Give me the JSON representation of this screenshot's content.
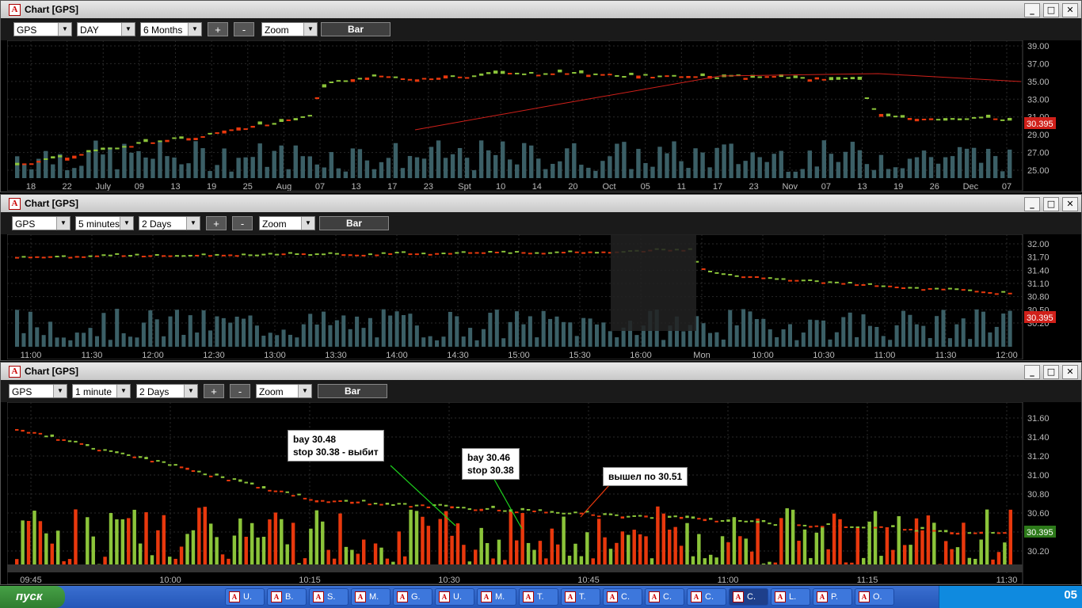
{
  "windows": [
    {
      "title": "Chart [GPS]",
      "symbol": "GPS",
      "interval": "DAY",
      "range": "6 Months",
      "plus": "+",
      "minus": "-",
      "zoom": "Zoom",
      "bar": "Bar",
      "price_labels": [
        "39.00",
        "37.00",
        "35.00",
        "33.00",
        "31.00",
        "29.00",
        "27.00",
        "25.00"
      ],
      "last_price": "30.395",
      "time_labels": [
        "18",
        "22",
        "July",
        "09",
        "13",
        "19",
        "25",
        "Aug",
        "07",
        "13",
        "17",
        "23",
        "Spt",
        "10",
        "14",
        "20",
        "Oct",
        "05",
        "11",
        "17",
        "23",
        "Nov",
        "07",
        "13",
        "19",
        "26",
        "Dec",
        "07"
      ]
    },
    {
      "title": "Chart [GPS]",
      "symbol": "GPS",
      "interval": "5 minutes",
      "range": "2 Days",
      "plus": "+",
      "minus": "-",
      "zoom": "Zoom",
      "bar": "Bar",
      "price_labels": [
        "32.00",
        "31.70",
        "31.40",
        "31.10",
        "30.80",
        "30.50",
        "30.20"
      ],
      "last_price": "30.395",
      "time_labels": [
        "11:00",
        "11:30",
        "12:00",
        "12:30",
        "13:00",
        "13:30",
        "14:00",
        "14:30",
        "15:00",
        "15:30",
        "16:00",
        "Mon",
        "10:00",
        "10:30",
        "11:00",
        "11:30",
        "12:00"
      ]
    },
    {
      "title": "Chart [GPS]",
      "symbol": "GPS",
      "interval": "1 minute",
      "range": "2 Days",
      "plus": "+",
      "minus": "-",
      "zoom": "Zoom",
      "bar": "Bar",
      "price_labels": [
        "31.60",
        "31.40",
        "31.20",
        "31.00",
        "30.80",
        "30.60",
        "30.40",
        "30.20"
      ],
      "last_price": "30.395",
      "time_labels": [
        "09:45",
        "10:00",
        "10:15",
        "10:30",
        "10:45",
        "11:00",
        "11:15",
        "11:30"
      ]
    }
  ],
  "annotations": [
    {
      "line1": "bay 30.48",
      "line2": "stop 30.38 - выбит"
    },
    {
      "line1": "bay 30.46",
      "line2": "stop 30.38"
    },
    {
      "line1": "вышел по 30.51",
      "line2": ""
    }
  ],
  "taskbar": {
    "start": "пуск",
    "tasks": [
      "U.",
      "B.",
      "S.",
      "M.",
      "G.",
      "U.",
      "M.",
      "T.",
      "T.",
      "C.",
      "C.",
      "C.",
      "C.",
      "L.",
      "P.",
      "O."
    ],
    "clock": "05"
  },
  "colors": {
    "up": "#8bc43a",
    "down": "#e8380d",
    "volume": "#3b5f66",
    "ma": "#d0201a"
  }
}
